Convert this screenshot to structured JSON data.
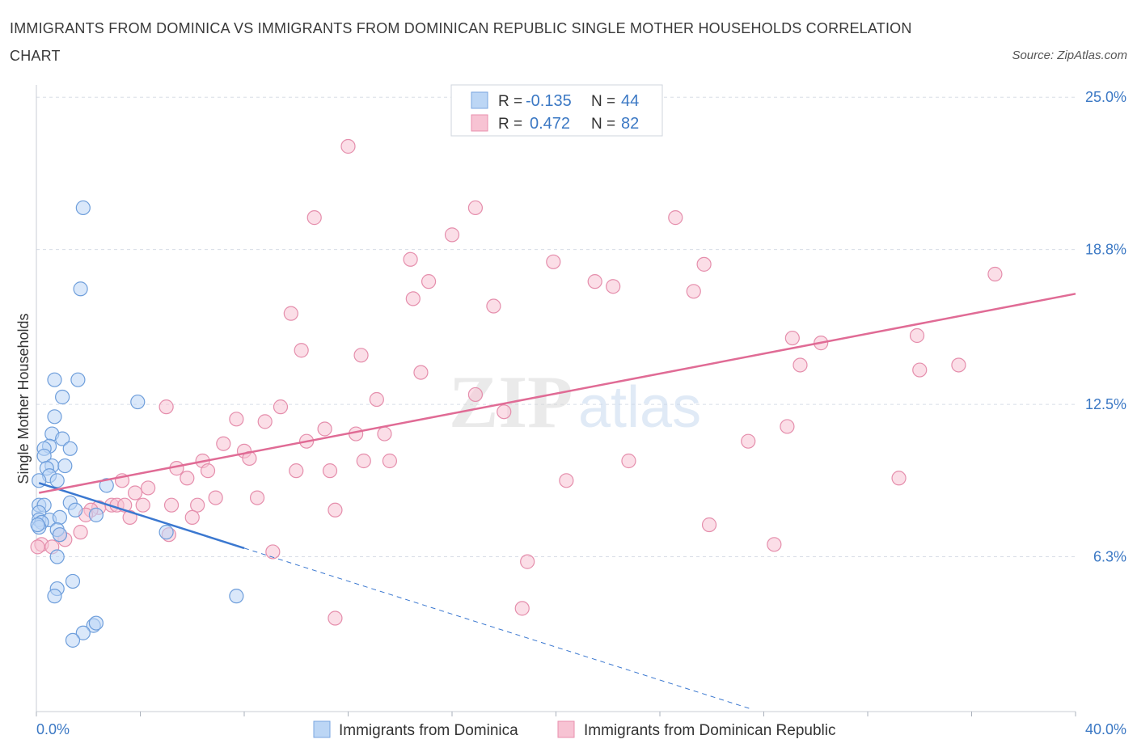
{
  "title": "IMMIGRANTS FROM DOMINICA VS IMMIGRANTS FROM DOMINICAN REPUBLIC SINGLE MOTHER HOUSEHOLDS CORRELATION CHART",
  "source": "Source: ZipAtlas.com",
  "watermark": {
    "zip": "ZIP",
    "atlas": "atlas"
  },
  "colors": {
    "blue": "#3b78d0",
    "blue_fill": "#bcd6f5",
    "pink": "#e06b95",
    "pink_fill": "#f7c3d3",
    "grid": "#d8dde6",
    "axis_label": "#3b78c4"
  },
  "legend": {
    "rows": [
      {
        "r_label": "R =",
        "r_value": "-0.135",
        "n_label": "N =",
        "n_value": "44"
      },
      {
        "r_label": "R =",
        "r_value": "0.472",
        "n_label": "N =",
        "n_value": "82"
      }
    ]
  },
  "chart_data": {
    "type": "scatter",
    "title": "IMMIGRANTS FROM DOMINICA VS IMMIGRANTS FROM DOMINICAN REPUBLIC SINGLE MOTHER HOUSEHOLDS CORRELATION CHART",
    "xlabel": "",
    "ylabel": "Single Mother Households",
    "xlim": [
      0,
      40
    ],
    "ylim": [
      0,
      25.5
    ],
    "x_tick_labels": [
      "0.0%",
      "40.0%"
    ],
    "y_ticks": [
      6.3,
      12.5,
      18.8,
      25.0
    ],
    "y_tick_labels": [
      "6.3%",
      "12.5%",
      "18.8%",
      "25.0%"
    ],
    "grid": true,
    "legend_position": "top-center",
    "series": [
      {
        "name": "Immigrants from Dominica",
        "color": "#3b78d0",
        "stats": {
          "R": -0.135,
          "N": 44
        },
        "trend": {
          "x0": 0.1,
          "y0": 9.3,
          "x1": 8.0,
          "y1": 6.65,
          "dashed_to_x": 27.5
        },
        "points": [
          [
            1.8,
            20.5
          ],
          [
            1.7,
            17.2
          ],
          [
            0.7,
            13.5
          ],
          [
            1.6,
            13.5
          ],
          [
            1.0,
            12.8
          ],
          [
            3.9,
            12.6
          ],
          [
            0.7,
            12.0
          ],
          [
            0.6,
            11.3
          ],
          [
            1.0,
            11.1
          ],
          [
            0.5,
            10.8
          ],
          [
            1.3,
            10.7
          ],
          [
            0.3,
            10.7
          ],
          [
            0.3,
            10.4
          ],
          [
            0.6,
            10.0
          ],
          [
            1.1,
            10.0
          ],
          [
            0.4,
            9.9
          ],
          [
            0.5,
            9.6
          ],
          [
            0.8,
            9.4
          ],
          [
            0.1,
            9.4
          ],
          [
            2.7,
            9.2
          ],
          [
            1.3,
            8.5
          ],
          [
            0.1,
            8.4
          ],
          [
            0.3,
            8.4
          ],
          [
            1.5,
            8.2
          ],
          [
            0.1,
            8.1
          ],
          [
            2.3,
            8.0
          ],
          [
            0.1,
            7.8
          ],
          [
            0.5,
            7.8
          ],
          [
            0.9,
            7.9
          ],
          [
            0.2,
            7.7
          ],
          [
            0.1,
            7.5
          ],
          [
            0.8,
            7.4
          ],
          [
            0.9,
            7.2
          ],
          [
            5.0,
            7.3
          ],
          [
            0.8,
            6.3
          ],
          [
            1.4,
            5.3
          ],
          [
            0.8,
            5.0
          ],
          [
            0.7,
            4.7
          ],
          [
            7.7,
            4.7
          ],
          [
            2.2,
            3.5
          ],
          [
            2.3,
            3.6
          ],
          [
            1.8,
            3.2
          ],
          [
            1.4,
            2.9
          ],
          [
            0.05,
            7.6
          ]
        ]
      },
      {
        "name": "Immigrants from Dominican Republic",
        "color": "#e06b95",
        "stats": {
          "R": 0.472,
          "N": 82
        },
        "trend": {
          "x0": 0.1,
          "y0": 8.9,
          "x1": 40.0,
          "y1": 17.0
        },
        "points": [
          [
            12.0,
            23.0
          ],
          [
            10.7,
            20.1
          ],
          [
            16.9,
            20.5
          ],
          [
            24.6,
            20.1
          ],
          [
            16.0,
            19.4
          ],
          [
            14.4,
            18.4
          ],
          [
            19.9,
            18.3
          ],
          [
            25.7,
            18.2
          ],
          [
            36.9,
            17.8
          ],
          [
            15.1,
            17.5
          ],
          [
            21.5,
            17.5
          ],
          [
            22.2,
            17.3
          ],
          [
            25.3,
            17.1
          ],
          [
            14.5,
            16.8
          ],
          [
            17.6,
            16.5
          ],
          [
            9.8,
            16.2
          ],
          [
            33.9,
            15.3
          ],
          [
            29.1,
            15.2
          ],
          [
            30.2,
            15.0
          ],
          [
            10.2,
            14.7
          ],
          [
            12.5,
            14.5
          ],
          [
            29.4,
            14.1
          ],
          [
            35.5,
            14.1
          ],
          [
            34.0,
            13.9
          ],
          [
            14.8,
            13.8
          ],
          [
            16.9,
            12.9
          ],
          [
            13.1,
            12.7
          ],
          [
            9.4,
            12.4
          ],
          [
            5.0,
            12.4
          ],
          [
            18.0,
            12.2
          ],
          [
            7.7,
            11.9
          ],
          [
            8.8,
            11.8
          ],
          [
            28.9,
            11.6
          ],
          [
            11.1,
            11.5
          ],
          [
            12.3,
            11.3
          ],
          [
            13.4,
            11.3
          ],
          [
            10.4,
            11.0
          ],
          [
            27.4,
            11.0
          ],
          [
            7.2,
            10.9
          ],
          [
            8.0,
            10.6
          ],
          [
            8.2,
            10.3
          ],
          [
            12.6,
            10.2
          ],
          [
            13.6,
            10.2
          ],
          [
            6.4,
            10.2
          ],
          [
            22.8,
            10.2
          ],
          [
            5.4,
            9.9
          ],
          [
            6.6,
            9.8
          ],
          [
            10.0,
            9.8
          ],
          [
            11.3,
            9.8
          ],
          [
            33.2,
            9.5
          ],
          [
            5.8,
            9.5
          ],
          [
            3.3,
            9.4
          ],
          [
            20.4,
            9.4
          ],
          [
            4.3,
            9.1
          ],
          [
            3.8,
            8.9
          ],
          [
            6.9,
            8.7
          ],
          [
            8.5,
            8.7
          ],
          [
            4.1,
            8.4
          ],
          [
            5.2,
            8.4
          ],
          [
            6.2,
            8.4
          ],
          [
            2.9,
            8.4
          ],
          [
            3.1,
            8.4
          ],
          [
            3.4,
            8.4
          ],
          [
            2.4,
            8.3
          ],
          [
            11.5,
            8.2
          ],
          [
            2.1,
            8.2
          ],
          [
            1.9,
            8.0
          ],
          [
            6.0,
            7.9
          ],
          [
            3.6,
            7.9
          ],
          [
            25.9,
            7.6
          ],
          [
            1.7,
            7.3
          ],
          [
            5.1,
            7.2
          ],
          [
            1.1,
            7.0
          ],
          [
            0.9,
            7.2
          ],
          [
            0.2,
            6.8
          ],
          [
            0.6,
            6.7
          ],
          [
            28.4,
            6.8
          ],
          [
            9.1,
            6.5
          ],
          [
            18.9,
            6.1
          ],
          [
            18.7,
            4.2
          ],
          [
            11.5,
            3.8
          ],
          [
            0.05,
            6.7
          ]
        ]
      }
    ]
  }
}
